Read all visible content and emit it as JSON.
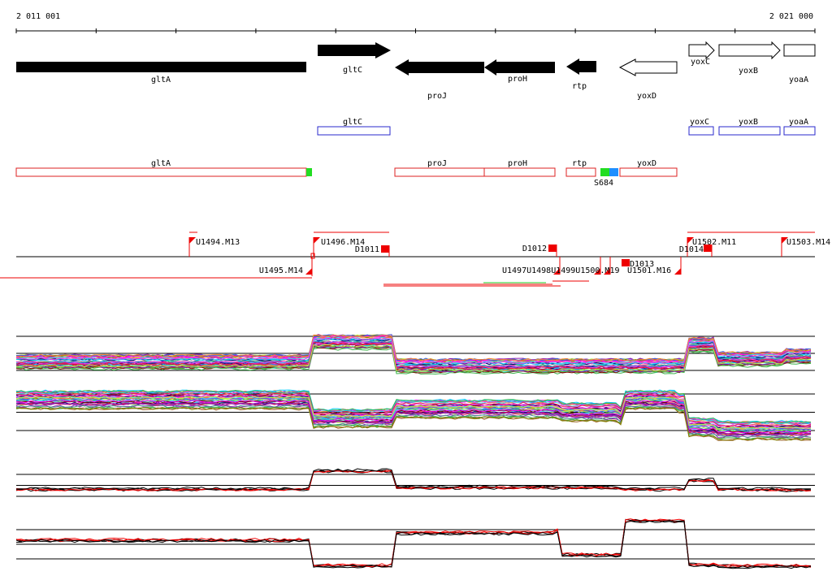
{
  "ruler": {
    "start_label": "2 011 001",
    "end_label": "2 021 000"
  },
  "colors": {
    "gene_fill": "#000000",
    "gene_outline": "#000000",
    "annotation_box": "#2a2acc",
    "transcript_box": "#dd2020",
    "marker_green": "#22dd22",
    "marker_blue": "#1e8fff",
    "promoter": "#ee0000",
    "profile_black": "#000000",
    "profile_red": "#ee0000"
  },
  "genes": [
    {
      "label": "gltA",
      "strand": "+",
      "filled": true
    },
    {
      "label": "gltC",
      "strand": "+",
      "filled": true
    },
    {
      "label": "proJ",
      "strand": "-",
      "filled": true
    },
    {
      "label": "proH",
      "strand": "-",
      "filled": true
    },
    {
      "label": "rtp",
      "strand": "-",
      "filled": true
    },
    {
      "label": "yoxD",
      "strand": "-",
      "filled": false
    },
    {
      "label": "yoxC",
      "strand": "+",
      "filled": false
    },
    {
      "label": "yoxB",
      "strand": "+",
      "filled": false
    },
    {
      "label": "yoaA",
      "strand": "+",
      "filled": false
    }
  ],
  "annotations": [
    {
      "label": "gltC"
    },
    {
      "label": "yoxC"
    },
    {
      "label": "yoxB"
    },
    {
      "label": "yoaA"
    }
  ],
  "transcripts": [
    {
      "label": "gltA"
    },
    {
      "label": "proJ"
    },
    {
      "label": "proH"
    },
    {
      "label": "rtp"
    },
    {
      "label": "yoxD"
    }
  ],
  "marker_label": "S684",
  "segments_top": [
    {
      "label": "U1494.M13"
    },
    {
      "label": "U1496.M14"
    },
    {
      "label": "D1011"
    },
    {
      "label": "D1012"
    },
    {
      "label": "U1502.M11"
    },
    {
      "label": "U1503.M14"
    },
    {
      "label": "D1014"
    }
  ],
  "segments_bottom": [
    {
      "label": "U1495.M14"
    },
    {
      "label": "U1497U1498U1499U1500.M19"
    },
    {
      "label": "D1013"
    },
    {
      "label": "U1501.M16"
    }
  ]
}
